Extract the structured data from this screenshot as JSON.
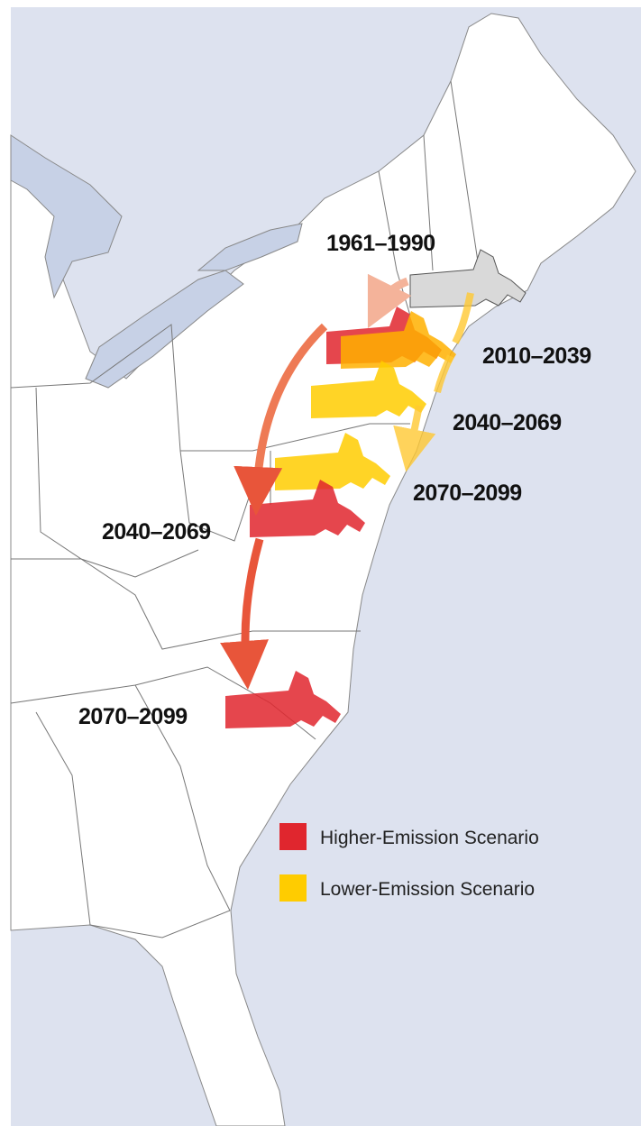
{
  "labels": {
    "baseline": "1961–1990",
    "lower": [
      "2010–2039",
      "2040–2069",
      "2070–2099"
    ],
    "higher": [
      "2040–2069",
      "2070–2099"
    ]
  },
  "legend": [
    {
      "label": "Higher-Emission Scenario",
      "color": "#e0262e"
    },
    {
      "label": "Lower-Emission Scenario",
      "color": "#ffcc00"
    }
  ]
}
